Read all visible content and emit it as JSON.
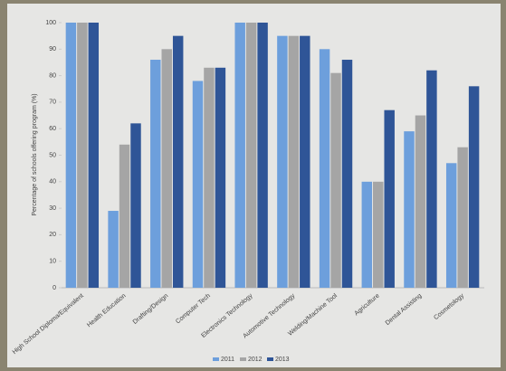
{
  "chart_data": {
    "type": "bar",
    "y_label": "Percentage of schools offering program (%)",
    "categories": [
      "High School Diploma/Equivalent",
      "Health Education",
      "Drafting/Design",
      "Computer Tech",
      "Electronics Technology",
      "Automotive Technology",
      "Welding/Machine Tool",
      "Agriculture",
      "Dental Assisting",
      "Cosmetology"
    ],
    "series": [
      {
        "name": "2011",
        "color": "#6d9fdc",
        "values": [
          100,
          29,
          86,
          78,
          100,
          95,
          90,
          40,
          59,
          47
        ]
      },
      {
        "name": "2012",
        "color": "#a5a5a5",
        "values": [
          100,
          54,
          90,
          83,
          100,
          95,
          81,
          40,
          65,
          53
        ]
      },
      {
        "name": "2013",
        "color": "#2f5597",
        "values": [
          100,
          62,
          95,
          83,
          100,
          95,
          86,
          67,
          82,
          76
        ]
      }
    ],
    "ylim": [
      0,
      100
    ],
    "yticks": [
      0,
      10,
      20,
      30,
      40,
      50,
      60,
      70,
      80,
      90,
      100
    ],
    "grid": false,
    "legend": "bottom"
  }
}
